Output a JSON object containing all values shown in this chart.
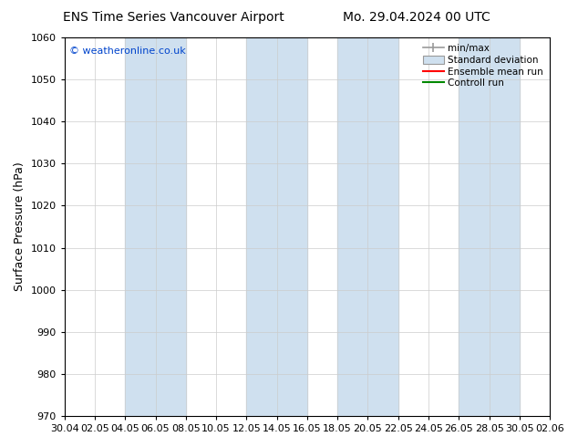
{
  "title_left": "ENS Time Series Vancouver Airport",
  "title_right": "Mo. 29.04.2024 00 UTC",
  "ylabel": "Surface Pressure (hPa)",
  "ylim": [
    970,
    1060
  ],
  "yticks": [
    970,
    980,
    990,
    1000,
    1010,
    1020,
    1030,
    1040,
    1050,
    1060
  ],
  "xlabels": [
    "30.04",
    "02.05",
    "04.05",
    "06.05",
    "08.05",
    "10.05",
    "12.05",
    "14.05",
    "16.05",
    "18.05",
    "20.05",
    "22.05",
    "24.05",
    "26.05",
    "28.05",
    "30.05",
    "02.06"
  ],
  "shade_ranges": [
    [
      2,
      4
    ],
    [
      6,
      8
    ],
    [
      9,
      11
    ],
    [
      13,
      15
    ],
    [
      16,
      17
    ]
  ],
  "shade_color": "#cfe0ef",
  "grid_color": "#cccccc",
  "bg_color": "#ffffff",
  "legend_items": [
    "min/max",
    "Standard deviation",
    "Ensemble mean run",
    "Controll run"
  ],
  "watermark": "© weatheronline.co.uk",
  "watermark_color": "#0044cc",
  "title_fontsize": 10,
  "ylabel_fontsize": 9,
  "tick_fontsize": 8,
  "legend_fontsize": 7.5
}
